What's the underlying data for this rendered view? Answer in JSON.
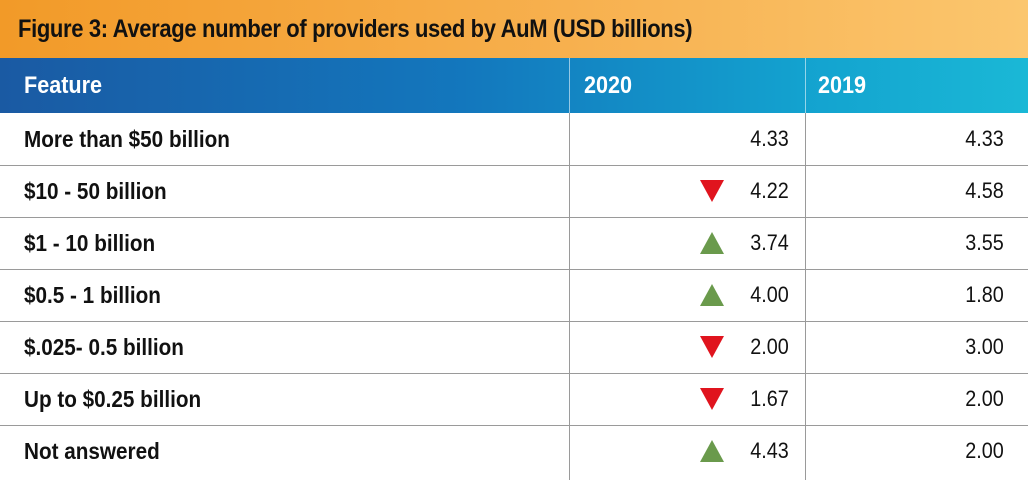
{
  "chart_data": {
    "type": "table",
    "title": "Figure 3: Average number of providers used by AuM (USD billions)",
    "columns": [
      "Feature",
      "2020",
      "2019"
    ],
    "rows": [
      {
        "feature": "More than $50 billion",
        "v2020": "4.33",
        "trend": "none",
        "v2019": "4.33"
      },
      {
        "feature": "$10 - 50 billion",
        "v2020": "4.22",
        "trend": "down",
        "v2019": "4.58"
      },
      {
        "feature": "$1 - 10 billion",
        "v2020": "3.74",
        "trend": "up",
        "v2019": "3.55"
      },
      {
        "feature": "$0.5 - 1 billion",
        "v2020": "4.00",
        "trend": "up",
        "v2019": "1.80"
      },
      {
        "feature": "$.025- 0.5 billion",
        "v2020": "2.00",
        "trend": "down",
        "v2019": "3.00"
      },
      {
        "feature": "Up to $0.25 billion",
        "v2020": "1.67",
        "trend": "down",
        "v2019": "2.00"
      },
      {
        "feature": "Not answered",
        "v2020": "4.43",
        "trend": "up",
        "v2019": "2.00"
      }
    ]
  },
  "colors": {
    "title_bar": "#f7b04e",
    "header_bar": "#1377bd",
    "up_arrow": "#6a9a4c",
    "down_arrow": "#e0141e"
  },
  "icons": {
    "up": "triangle-up-icon",
    "down": "triangle-down-icon"
  }
}
